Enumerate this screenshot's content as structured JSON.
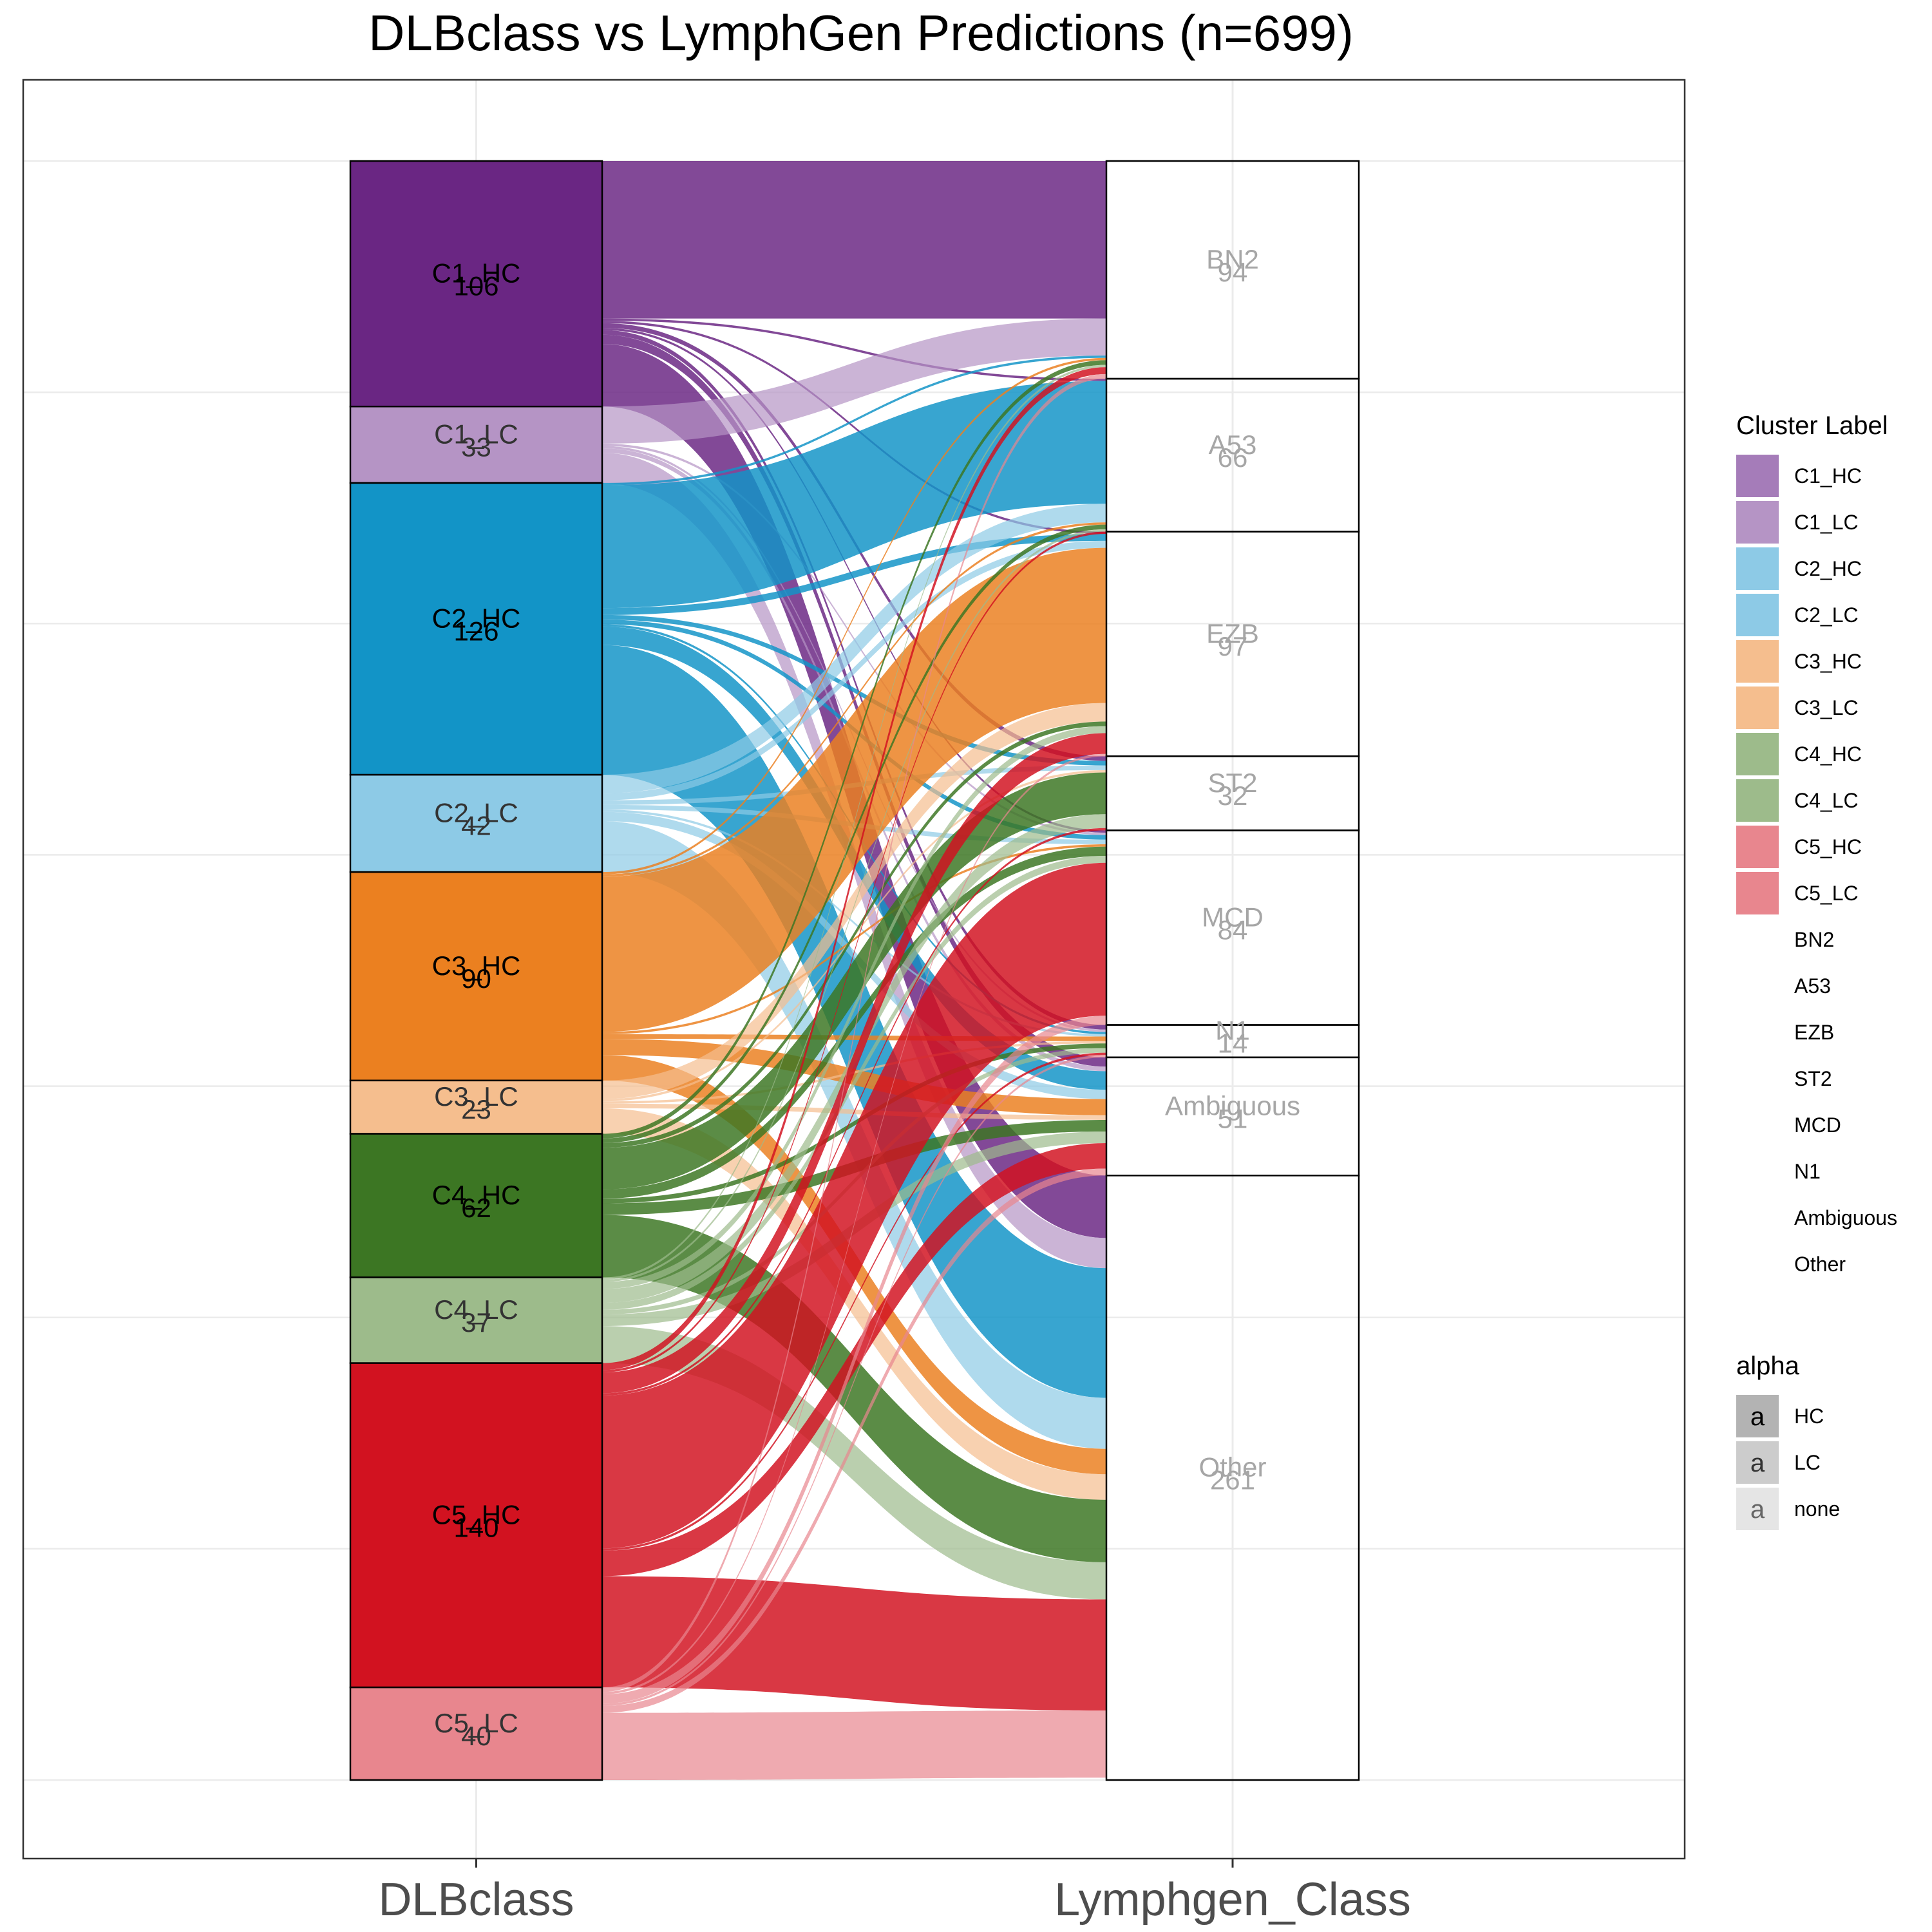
{
  "chart_data": {
    "type": "alluvial",
    "title": "DLBclass vs LymphGen Predictions (n=699)",
    "axes": [
      "DLBclass",
      "Lymphgen_Class"
    ],
    "left_strata": [
      {
        "name": "C1_HC",
        "count": 106,
        "color": "#6A2683"
      },
      {
        "name": "C1_LC",
        "count": 33,
        "color": "#B594C5"
      },
      {
        "name": "C2_HC",
        "count": 126,
        "color": "#1294C7"
      },
      {
        "name": "C2_LC",
        "count": 42,
        "color": "#8DCAE6"
      },
      {
        "name": "C3_HC",
        "count": 90,
        "color": "#EB8020"
      },
      {
        "name": "C3_LC",
        "count": 23,
        "color": "#F5BE8E"
      },
      {
        "name": "C4_HC",
        "count": 62,
        "color": "#3C7623"
      },
      {
        "name": "C4_LC",
        "count": 37,
        "color": "#9DBB8B"
      },
      {
        "name": "C5_HC",
        "count": 140,
        "color": "#D21220"
      },
      {
        "name": "C5_LC",
        "count": 40,
        "color": "#E8868E"
      }
    ],
    "right_strata": [
      {
        "name": "BN2",
        "count": 94
      },
      {
        "name": "A53",
        "count": 66
      },
      {
        "name": "EZB",
        "count": 97
      },
      {
        "name": "ST2",
        "count": 32
      },
      {
        "name": "MCD",
        "count": 84
      },
      {
        "name": "N1",
        "count": 14
      },
      {
        "name": "Ambiguous",
        "count": 51
      },
      {
        "name": "Other",
        "count": 261
      }
    ],
    "flows": [
      {
        "from": "C1_HC",
        "to": "BN2",
        "value": 68
      },
      {
        "from": "C1_HC",
        "to": "A53",
        "value": 1
      },
      {
        "from": "C1_HC",
        "to": "EZB",
        "value": 1
      },
      {
        "from": "C1_HC",
        "to": "ST2",
        "value": 2
      },
      {
        "from": "C1_HC",
        "to": "MCD",
        "value": 1
      },
      {
        "from": "C1_HC",
        "to": "N1",
        "value": 2
      },
      {
        "from": "C1_HC",
        "to": "Ambiguous",
        "value": 4
      },
      {
        "from": "C1_HC",
        "to": "Other",
        "value": 27
      },
      {
        "from": "C1_LC",
        "to": "BN2",
        "value": 16
      },
      {
        "from": "C1_LC",
        "to": "MCD",
        "value": 1
      },
      {
        "from": "C1_LC",
        "to": "N1",
        "value": 1
      },
      {
        "from": "C1_LC",
        "to": "Ambiguous",
        "value": 2
      },
      {
        "from": "C1_LC",
        "to": "Other",
        "value": 13
      },
      {
        "from": "C2_HC",
        "to": "BN2",
        "value": 1
      },
      {
        "from": "C2_HC",
        "to": "A53",
        "value": 53
      },
      {
        "from": "C2_HC",
        "to": "EZB",
        "value": 3
      },
      {
        "from": "C2_HC",
        "to": "ST2",
        "value": 2
      },
      {
        "from": "C2_HC",
        "to": "MCD",
        "value": 2
      },
      {
        "from": "C2_HC",
        "to": "N1",
        "value": 1
      },
      {
        "from": "C2_HC",
        "to": "Ambiguous",
        "value": 8
      },
      {
        "from": "C2_HC",
        "to": "Other",
        "value": 56
      },
      {
        "from": "C2_LC",
        "to": "A53",
        "value": 8
      },
      {
        "from": "C2_LC",
        "to": "EZB",
        "value": 3
      },
      {
        "from": "C2_LC",
        "to": "ST2",
        "value": 2
      },
      {
        "from": "C2_LC",
        "to": "MCD",
        "value": 2
      },
      {
        "from": "C2_LC",
        "to": "N1",
        "value": 1
      },
      {
        "from": "C2_LC",
        "to": "Ambiguous",
        "value": 4
      },
      {
        "from": "C2_LC",
        "to": "Other",
        "value": 22
      },
      {
        "from": "C3_HC",
        "to": "BN2",
        "value": 1
      },
      {
        "from": "C3_HC",
        "to": "A53",
        "value": 1
      },
      {
        "from": "C3_HC",
        "to": "EZB",
        "value": 67
      },
      {
        "from": "C3_HC",
        "to": "MCD",
        "value": 1
      },
      {
        "from": "C3_HC",
        "to": "N1",
        "value": 2
      },
      {
        "from": "C3_HC",
        "to": "Ambiguous",
        "value": 7
      },
      {
        "from": "C3_HC",
        "to": "Other",
        "value": 11
      },
      {
        "from": "C3_LC",
        "to": "EZB",
        "value": 8
      },
      {
        "from": "C3_LC",
        "to": "ST2",
        "value": 1
      },
      {
        "from": "C3_LC",
        "to": "N1",
        "value": 1
      },
      {
        "from": "C3_LC",
        "to": "Ambiguous",
        "value": 2
      },
      {
        "from": "C3_LC",
        "to": "Other",
        "value": 11
      },
      {
        "from": "C4_HC",
        "to": "BN2",
        "value": 2
      },
      {
        "from": "C4_HC",
        "to": "A53",
        "value": 2
      },
      {
        "from": "C4_HC",
        "to": "EZB",
        "value": 2
      },
      {
        "from": "C4_HC",
        "to": "ST2",
        "value": 18
      },
      {
        "from": "C4_HC",
        "to": "MCD",
        "value": 4
      },
      {
        "from": "C4_HC",
        "to": "N1",
        "value": 2
      },
      {
        "from": "C4_HC",
        "to": "Ambiguous",
        "value": 5
      },
      {
        "from": "C4_HC",
        "to": "Other",
        "value": 27
      },
      {
        "from": "C4_LC",
        "to": "BN2",
        "value": 1
      },
      {
        "from": "C4_LC",
        "to": "A53",
        "value": 1
      },
      {
        "from": "C4_LC",
        "to": "EZB",
        "value": 3
      },
      {
        "from": "C4_LC",
        "to": "ST2",
        "value": 6
      },
      {
        "from": "C4_LC",
        "to": "MCD",
        "value": 3
      },
      {
        "from": "C4_LC",
        "to": "N1",
        "value": 2
      },
      {
        "from": "C4_LC",
        "to": "Ambiguous",
        "value": 5
      },
      {
        "from": "C4_LC",
        "to": "Other",
        "value": 16
      },
      {
        "from": "C5_HC",
        "to": "BN2",
        "value": 3
      },
      {
        "from": "C5_HC",
        "to": "A53",
        "value": 1
      },
      {
        "from": "C5_HC",
        "to": "EZB",
        "value": 9
      },
      {
        "from": "C5_HC",
        "to": "ST2",
        "value": 1
      },
      {
        "from": "C5_HC",
        "to": "MCD",
        "value": 66
      },
      {
        "from": "C5_HC",
        "to": "N1",
        "value": 1
      },
      {
        "from": "C5_HC",
        "to": "Ambiguous",
        "value": 11
      },
      {
        "from": "C5_HC",
        "to": "Other",
        "value": 48
      },
      {
        "from": "C5_LC",
        "to": "BN2",
        "value": 2
      },
      {
        "from": "C5_LC",
        "to": "EZB",
        "value": 1
      },
      {
        "from": "C5_LC",
        "to": "MCD",
        "value": 4
      },
      {
        "from": "C5_LC",
        "to": "N1",
        "value": 1
      },
      {
        "from": "C5_LC",
        "to": "Ambiguous",
        "value": 3
      },
      {
        "from": "C5_LC",
        "to": "Other",
        "value": 29
      }
    ],
    "legend": {
      "placement": "right",
      "cluster_title": "Cluster Label",
      "cluster_items": [
        {
          "label": "C1_HC",
          "color": "#A57CB9"
        },
        {
          "label": "C1_LC",
          "color": "#B594C5"
        },
        {
          "label": "C2_HC",
          "color": "#8DCAE6"
        },
        {
          "label": "C2_LC",
          "color": "#8DCAE6"
        },
        {
          "label": "C3_HC",
          "color": "#F5BE8E"
        },
        {
          "label": "C3_LC",
          "color": "#F5BE8E"
        },
        {
          "label": "C4_HC",
          "color": "#9DBB8B"
        },
        {
          "label": "C4_LC",
          "color": "#9DBB8B"
        },
        {
          "label": "C5_HC",
          "color": "#E8868E"
        },
        {
          "label": "C5_LC",
          "color": "#E8868E"
        },
        {
          "label": "BN2",
          "color": "#FFFFFF"
        },
        {
          "label": "A53",
          "color": "#FFFFFF"
        },
        {
          "label": "EZB",
          "color": "#FFFFFF"
        },
        {
          "label": "ST2",
          "color": "#FFFFFF"
        },
        {
          "label": "MCD",
          "color": "#FFFFFF"
        },
        {
          "label": "N1",
          "color": "#FFFFFF"
        },
        {
          "label": "Ambiguous",
          "color": "#FFFFFF"
        },
        {
          "label": "Other",
          "color": "#FFFFFF"
        }
      ],
      "alpha_title": "alpha",
      "alpha_items": [
        {
          "label": "HC",
          "key": "a",
          "fill": "#B3B3B3",
          "text_color": "#000000"
        },
        {
          "label": "LC",
          "key": "a",
          "fill": "#CCCCCC",
          "text_color": "#333333"
        },
        {
          "label": "none",
          "key": "a",
          "fill": "#E5E5E5",
          "text_color": "#666666"
        }
      ]
    },
    "grid": true
  }
}
